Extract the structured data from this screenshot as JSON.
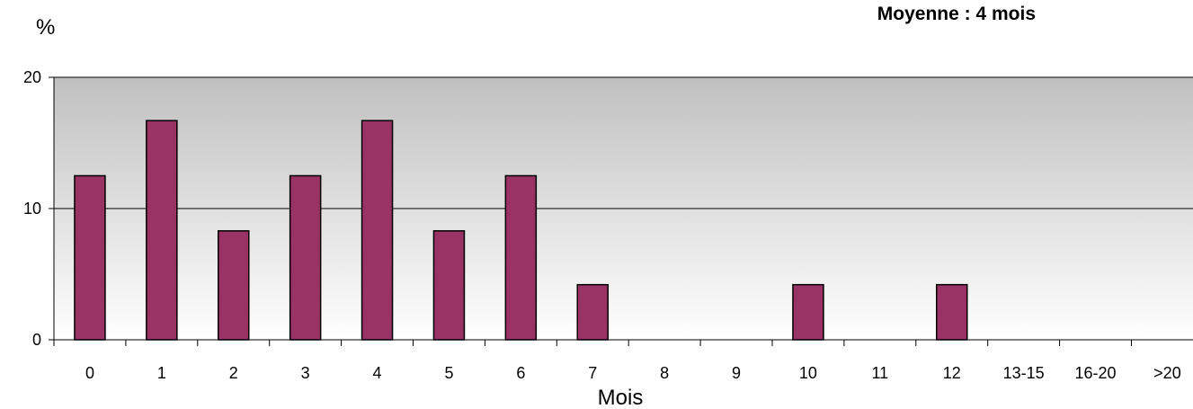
{
  "chart_data": {
    "type": "bar",
    "categories": [
      "0",
      "1",
      "2",
      "3",
      "4",
      "5",
      "6",
      "7",
      "8",
      "9",
      "10",
      "11",
      "12",
      "13-15",
      "16-20",
      ">20"
    ],
    "values": [
      12.5,
      16.7,
      8.3,
      12.5,
      16.7,
      8.3,
      12.5,
      4.2,
      0,
      0,
      4.2,
      0,
      4.2,
      0,
      0,
      0
    ],
    "title": "",
    "annotation": "Moyenne : 4 mois",
    "xlabel": "Mois",
    "ylabel": "%",
    "ylim": [
      0,
      20
    ],
    "yticks": [
      0,
      10,
      20
    ],
    "grid": true,
    "colors": {
      "bar": "#993366",
      "bar_border": "#000000",
      "plot_bg_top": "#c0c0c0",
      "plot_bg_bottom": "#ffffff"
    }
  }
}
